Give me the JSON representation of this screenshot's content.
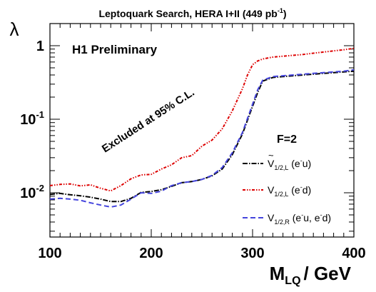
{
  "chart_data": {
    "type": "line",
    "title": "Leptoquark Search, HERA I+II (449 pb",
    "title_sup": "-1",
    "title_close": ")",
    "ylabel": "λ",
    "xlabel_main": "M",
    "xlabel_sub": "LQ",
    "xlabel_rest": "/ GeV",
    "xlim": [
      100,
      400
    ],
    "ylim": [
      0.0025,
      2.0
    ],
    "y_scale": "log",
    "grid": false,
    "legend_position": "right",
    "x_ticks": [
      100,
      200,
      300,
      400
    ],
    "y_ticks": [
      {
        "value": 1,
        "label": "1"
      },
      {
        "value": 0.1,
        "label": "10",
        "sup": "-1"
      },
      {
        "value": 0.01,
        "label": "10",
        "sup": "-2"
      }
    ],
    "annotations": {
      "preliminary": "H1 Preliminary",
      "excluded": "Excluded at 95% C.L.",
      "fermion_number": "F=2"
    },
    "series": [
      {
        "label_main": "V",
        "label_tilde": "~",
        "label_sub": "1/2,L",
        "label_rest": " (e",
        "label_sup": "-",
        "label_end": "u)",
        "color": "#000000",
        "dash": "7,2,1.5,2",
        "x": [
          100,
          110,
          120,
          130,
          140,
          150,
          160,
          170,
          180,
          190,
          200,
          210,
          220,
          230,
          240,
          250,
          260,
          270,
          280,
          290,
          300,
          305,
          310,
          320,
          330,
          340,
          350,
          360,
          370,
          380,
          390,
          400
        ],
        "y": [
          0.0095,
          0.0098,
          0.0094,
          0.0091,
          0.0087,
          0.0082,
          0.0076,
          0.0076,
          0.0084,
          0.0101,
          0.0104,
          0.011,
          0.0122,
          0.0137,
          0.0142,
          0.0152,
          0.017,
          0.021,
          0.033,
          0.063,
          0.15,
          0.23,
          0.33,
          0.37,
          0.38,
          0.39,
          0.4,
          0.41,
          0.42,
          0.43,
          0.44,
          0.45
        ]
      },
      {
        "label_main": "V",
        "label_tilde": "",
        "label_sub": "1/2,L",
        "label_rest": " (e",
        "label_sup": "-",
        "label_end": "d)",
        "color": "#dd0000",
        "dash": "4,2,1.5,2,1.5,2",
        "x": [
          100,
          110,
          120,
          130,
          140,
          150,
          160,
          170,
          180,
          190,
          200,
          210,
          220,
          230,
          240,
          250,
          260,
          270,
          280,
          290,
          295,
          300,
          305,
          310,
          320,
          330,
          340,
          350,
          360,
          370,
          380,
          390,
          400
        ],
        "y": [
          0.0125,
          0.013,
          0.0132,
          0.0124,
          0.0128,
          0.0115,
          0.0106,
          0.0125,
          0.0155,
          0.0175,
          0.0178,
          0.021,
          0.024,
          0.03,
          0.032,
          0.043,
          0.052,
          0.074,
          0.13,
          0.26,
          0.4,
          0.55,
          0.62,
          0.66,
          0.7,
          0.72,
          0.74,
          0.76,
          0.79,
          0.82,
          0.85,
          0.88,
          0.92
        ]
      },
      {
        "label_main": "V",
        "label_tilde": "",
        "label_sub": "1/2,R",
        "label_rest": " (e",
        "label_sup": "-",
        "label_end": "u, e",
        "label_sup2": "-",
        "label_end2": "d)",
        "color": "#4444dd",
        "dash": "7,4",
        "x": [
          100,
          110,
          120,
          130,
          140,
          150,
          160,
          170,
          180,
          190,
          200,
          210,
          220,
          230,
          240,
          250,
          260,
          270,
          280,
          290,
          300,
          305,
          310,
          320,
          330,
          340,
          350,
          360,
          370,
          380,
          390,
          400
        ],
        "y": [
          0.0082,
          0.0084,
          0.0082,
          0.0079,
          0.0073,
          0.0068,
          0.0064,
          0.0068,
          0.0082,
          0.01,
          0.0098,
          0.0105,
          0.0125,
          0.0137,
          0.0142,
          0.0152,
          0.0172,
          0.022,
          0.035,
          0.066,
          0.16,
          0.25,
          0.34,
          0.38,
          0.39,
          0.4,
          0.41,
          0.42,
          0.43,
          0.44,
          0.45,
          0.47
        ]
      }
    ]
  }
}
